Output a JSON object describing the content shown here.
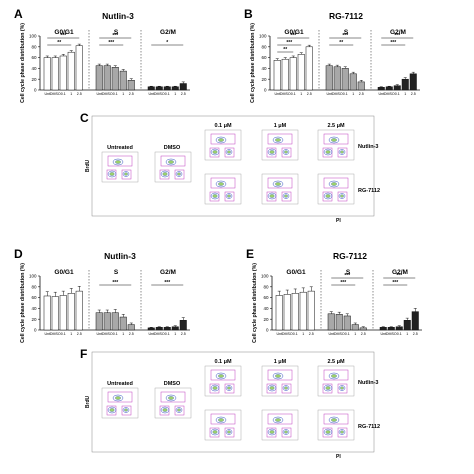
{
  "panels": {
    "A": {
      "letter": "A",
      "title": "Nutlin-3",
      "groups": [
        "G0/G1",
        "S",
        "G2/M"
      ],
      "sig": [
        "***",
        "**",
        "***",
        "***",
        "*"
      ]
    },
    "B": {
      "letter": "B",
      "title": "RG-7112",
      "groups": [
        "G0/G1",
        "S",
        "G2/M"
      ],
      "sig": [
        "***",
        "***",
        "**",
        "***",
        "**",
        "***",
        "***"
      ]
    },
    "C": {
      "letter": "C",
      "labels": {
        "untreated": "Untreated",
        "dmso": "DMSO",
        "c1": "0.1 μM",
        "c2": "1 μM",
        "c3": "2.5 μM",
        "drug1": "Nutlin-3",
        "drug2": "RG-7112",
        "xaxis": "PI",
        "yaxis": "BrdU"
      }
    },
    "D": {
      "letter": "D",
      "title": "Nutlin-3",
      "groups": [
        "G0/G1",
        "S",
        "G2/M"
      ],
      "sig": [
        "***",
        "***"
      ]
    },
    "E": {
      "letter": "E",
      "title": "RG-7112",
      "groups": [
        "G0/G1",
        "S",
        "G2/M"
      ],
      "sig": [
        "***",
        "***",
        "***",
        "***"
      ]
    },
    "F": {
      "letter": "F",
      "labels": {
        "untreated": "Untreated",
        "dmso": "DMSO",
        "c1": "0.1 μM",
        "c2": "1 μM",
        "c3": "2.5 μM",
        "drug1": "Nutlin-3",
        "drug2": "RG-7112",
        "xaxis": "PI",
        "yaxis": "BrdU"
      }
    }
  },
  "ylabel": "Cell cycle phase distribution (%)",
  "yticks": [
    "0",
    "20",
    "40",
    "60",
    "80",
    "100"
  ],
  "xticklabels": [
    "Unt",
    "DMSO",
    "0.1",
    "1",
    "2.5"
  ],
  "colors": {
    "white_bar": "#ffffff",
    "gray_bar": "#a8a8a8",
    "dark_bar": "#222222",
    "gate": "#c040c0",
    "contour": "#3050c0"
  },
  "chart_data": [
    {
      "type": "bar",
      "panel": "A",
      "title": "Nutlin-3",
      "categories": [
        "Unt",
        "DMSO",
        "0.1",
        "1",
        "2.5"
      ],
      "ylim": [
        0,
        100
      ],
      "ylabel": "Cell cycle phase distribution (%)",
      "series": [
        {
          "name": "G0/G1",
          "values": [
            60,
            60,
            63,
            70,
            82
          ],
          "errors": [
            3,
            3,
            3,
            3,
            3
          ]
        },
        {
          "name": "S",
          "values": [
            45,
            45,
            42,
            35,
            18
          ],
          "errors": [
            3,
            3,
            3,
            3,
            3
          ]
        },
        {
          "name": "G2/M",
          "values": [
            6,
            6,
            6,
            6,
            12
          ],
          "errors": [
            1,
            1,
            1,
            1,
            3
          ]
        }
      ]
    },
    {
      "type": "bar",
      "panel": "B",
      "title": "RG-7112",
      "categories": [
        "Unt",
        "DMSO",
        "0.1",
        "1",
        "2.5"
      ],
      "ylim": [
        0,
        100
      ],
      "ylabel": "Cell cycle phase distribution (%)",
      "series": [
        {
          "name": "G0/G1",
          "values": [
            55,
            57,
            60,
            66,
            80
          ],
          "errors": [
            3,
            3,
            3,
            3,
            3
          ]
        },
        {
          "name": "S",
          "values": [
            45,
            43,
            40,
            30,
            15
          ],
          "errors": [
            3,
            3,
            3,
            3,
            3
          ]
        },
        {
          "name": "G2/M",
          "values": [
            5,
            6,
            8,
            20,
            30
          ],
          "errors": [
            1,
            1,
            2,
            3,
            3
          ]
        }
      ]
    },
    {
      "type": "bar",
      "panel": "D",
      "title": "Nutlin-3",
      "categories": [
        "Unt",
        "DMSO",
        "0.1",
        "1",
        "2.5"
      ],
      "ylim": [
        0,
        100
      ],
      "ylabel": "Cell cycle phase distribution (%)",
      "series": [
        {
          "name": "G0/G1",
          "values": [
            63,
            62,
            64,
            68,
            72
          ],
          "errors": [
            8,
            8,
            8,
            9,
            9
          ]
        },
        {
          "name": "S",
          "values": [
            32,
            32,
            32,
            24,
            10
          ],
          "errors": [
            5,
            5,
            6,
            5,
            3
          ]
        },
        {
          "name": "G2/M",
          "values": [
            4,
            5,
            5,
            6,
            18
          ],
          "errors": [
            1,
            1,
            1,
            2,
            5
          ]
        }
      ]
    },
    {
      "type": "bar",
      "panel": "E",
      "title": "RG-7112",
      "categories": [
        "Unt",
        "DMSO",
        "0.1",
        "1",
        "2.5"
      ],
      "ylim": [
        0,
        100
      ],
      "ylabel": "Cell cycle phase distribution (%)",
      "series": [
        {
          "name": "G0/G1",
          "values": [
            64,
            66,
            68,
            70,
            72
          ],
          "errors": [
            8,
            8,
            8,
            8,
            8
          ]
        },
        {
          "name": "S",
          "values": [
            30,
            29,
            26,
            10,
            4
          ],
          "errors": [
            4,
            4,
            4,
            3,
            2
          ]
        },
        {
          "name": "G2/M",
          "values": [
            5,
            5,
            6,
            18,
            34
          ],
          "errors": [
            1,
            1,
            2,
            4,
            6
          ]
        }
      ]
    }
  ]
}
